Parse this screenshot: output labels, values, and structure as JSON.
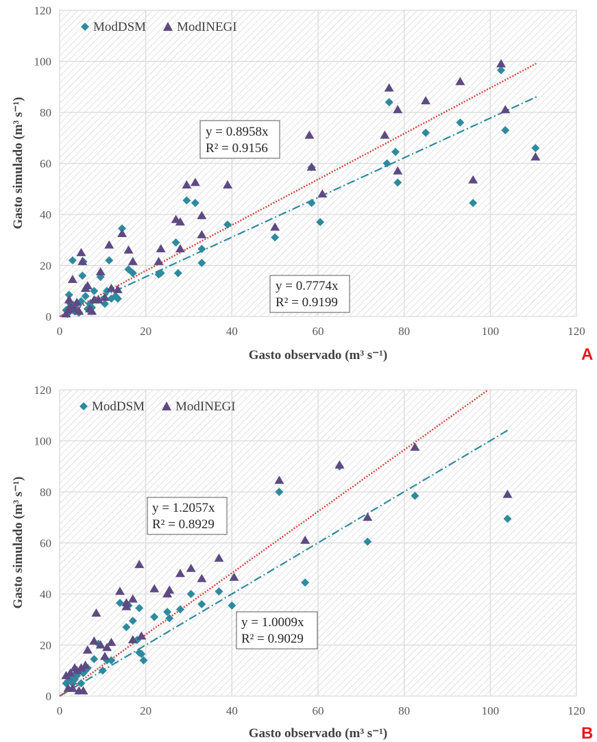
{
  "colors": {
    "moddsm": "#2e8a9e",
    "modinegi": "#5e4a82",
    "fit_moddsm": "#2e8a9e",
    "fit_modinegi": "#d0443a",
    "grid": "#d9d9d9",
    "hatch": "#c8c8c8",
    "panel_label": "#e8161b"
  },
  "chart_data": [
    {
      "type": "scatter",
      "panel_label": "A",
      "xlabel": "Gasto observado (m³ s⁻¹)",
      "ylabel": "Gasto simulado (m³ s⁻¹)",
      "xlim": [
        0,
        120
      ],
      "ylim": [
        0,
        120
      ],
      "xticks": [
        0,
        20,
        40,
        60,
        80,
        100,
        120
      ],
      "yticks": [
        0,
        20,
        40,
        60,
        80,
        100,
        120
      ],
      "grid": true,
      "legend": "top-left",
      "series": [
        {
          "name": "ModDSM",
          "marker": "diamond",
          "slope": 0.7774,
          "equation": "y = 0.7774x",
          "r2": "R² = 0.9199",
          "trend_xmax": 111,
          "points": [
            [
              1.5,
              2.5
            ],
            [
              1.8,
              1
            ],
            [
              2,
              3
            ],
            [
              2.2,
              8.5
            ],
            [
              2.5,
              5
            ],
            [
              2.8,
              3
            ],
            [
              3,
              22
            ],
            [
              3.2,
              4.5
            ],
            [
              3.5,
              2
            ],
            [
              4,
              5
            ],
            [
              4.5,
              1.5
            ],
            [
              5,
              6
            ],
            [
              5.3,
              16
            ],
            [
              5.5,
              21.5
            ],
            [
              6,
              8
            ],
            [
              6.5,
              3
            ],
            [
              7,
              5
            ],
            [
              7.5,
              3.5
            ],
            [
              8,
              10
            ],
            [
              9,
              6.5
            ],
            [
              9.5,
              15.5
            ],
            [
              10.5,
              5
            ],
            [
              11,
              10
            ],
            [
              11.5,
              22
            ],
            [
              12,
              7
            ],
            [
              13,
              8
            ],
            [
              13.5,
              7
            ],
            [
              14.5,
              34.5
            ],
            [
              16,
              18.5
            ],
            [
              17,
              17
            ],
            [
              23,
              16.5
            ],
            [
              23.5,
              17
            ],
            [
              27,
              29
            ],
            [
              27.5,
              17
            ],
            [
              29.5,
              45.5
            ],
            [
              31.5,
              44.5
            ],
            [
              33,
              26.5
            ],
            [
              33,
              21
            ],
            [
              39,
              36
            ],
            [
              50,
              31
            ],
            [
              58.5,
              58.5
            ],
            [
              58.5,
              44.5
            ],
            [
              60.5,
              37
            ],
            [
              76,
              60
            ],
            [
              76.5,
              84
            ],
            [
              78,
              64.5
            ],
            [
              78.5,
              52.5
            ],
            [
              85,
              72
            ],
            [
              93,
              76
            ],
            [
              96,
              44.5
            ],
            [
              102.5,
              96.5
            ],
            [
              103.5,
              73
            ],
            [
              110.5,
              66
            ]
          ]
        },
        {
          "name": "ModINEGI",
          "marker": "triangle",
          "slope": 0.8958,
          "equation": "y = 0.8958x",
          "r2": "R² = 0.9156",
          "trend_xmax": 111,
          "points": [
            [
              1.5,
              1
            ],
            [
              2,
              2.5
            ],
            [
              2.2,
              6.5
            ],
            [
              2.5,
              4
            ],
            [
              3,
              14.5
            ],
            [
              3.5,
              3
            ],
            [
              4,
              5.5
            ],
            [
              4.5,
              2
            ],
            [
              5,
              25
            ],
            [
              5.3,
              21.5
            ],
            [
              6,
              11
            ],
            [
              6.5,
              12
            ],
            [
              7,
              3
            ],
            [
              7.5,
              2
            ],
            [
              8,
              6.5
            ],
            [
              9,
              6.5
            ],
            [
              9.5,
              17.5
            ],
            [
              10.5,
              7.5
            ],
            [
              11.5,
              28
            ],
            [
              12,
              11
            ],
            [
              13.5,
              10.5
            ],
            [
              14.5,
              32.5
            ],
            [
              16,
              26
            ],
            [
              17,
              21.5
            ],
            [
              23,
              21.5
            ],
            [
              23.5,
              26.5
            ],
            [
              27,
              38
            ],
            [
              28,
              37
            ],
            [
              28,
              26.5
            ],
            [
              29.5,
              51.5
            ],
            [
              31.5,
              52.5
            ],
            [
              33,
              39.5
            ],
            [
              33,
              32
            ],
            [
              39,
              51.5
            ],
            [
              50,
              35
            ],
            [
              58,
              71
            ],
            [
              58.5,
              58.5
            ],
            [
              61,
              48
            ],
            [
              75.5,
              71
            ],
            [
              76.5,
              89.5
            ],
            [
              78.5,
              81
            ],
            [
              78.5,
              57
            ],
            [
              85,
              84.5
            ],
            [
              93,
              92
            ],
            [
              96,
              53.5
            ],
            [
              102.5,
              99
            ],
            [
              103.5,
              81
            ],
            [
              110.5,
              62.5
            ]
          ]
        }
      ]
    },
    {
      "type": "scatter",
      "panel_label": "B",
      "xlabel": "Gasto observado (m³ s⁻¹)",
      "ylabel": "Gasto simulado (m³ s⁻¹)",
      "xlim": [
        0,
        120
      ],
      "ylim": [
        0,
        120
      ],
      "xticks": [
        0,
        20,
        40,
        60,
        80,
        100,
        120
      ],
      "yticks": [
        0,
        20,
        40,
        60,
        80,
        100,
        120
      ],
      "grid": true,
      "legend": "top-left",
      "series": [
        {
          "name": "ModDSM",
          "marker": "diamond",
          "slope": 1.0009,
          "equation": "y = 1.0009x",
          "r2": "R² = 0.9029",
          "trend_xmax": 104,
          "points": [
            [
              1.5,
              5
            ],
            [
              2,
              6
            ],
            [
              2.5,
              7
            ],
            [
              3,
              5
            ],
            [
              3.5,
              6.5
            ],
            [
              4,
              8
            ],
            [
              4.5,
              9.5
            ],
            [
              5,
              5
            ],
            [
              5.5,
              9
            ],
            [
              6,
              10
            ],
            [
              6.5,
              11
            ],
            [
              8,
              14.5
            ],
            [
              9,
              20.5
            ],
            [
              10,
              10
            ],
            [
              11,
              14
            ],
            [
              12,
              14
            ],
            [
              14,
              36.5
            ],
            [
              15.5,
              27
            ],
            [
              16,
              35.5
            ],
            [
              17,
              29.5
            ],
            [
              18,
              22
            ],
            [
              18.5,
              34.5
            ],
            [
              18.5,
              17
            ],
            [
              19,
              16.5
            ],
            [
              19.5,
              14
            ],
            [
              22,
              31
            ],
            [
              25,
              33
            ],
            [
              25.5,
              30.5
            ],
            [
              28,
              34
            ],
            [
              30.5,
              40
            ],
            [
              33,
              36
            ],
            [
              37,
              41
            ],
            [
              40,
              35.5
            ],
            [
              51,
              80
            ],
            [
              57,
              44.5
            ],
            [
              65,
              90
            ],
            [
              71.5,
              60.5
            ],
            [
              82.5,
              78.5
            ],
            [
              104,
              69.5
            ]
          ]
        },
        {
          "name": "ModINEGI",
          "marker": "triangle",
          "slope": 1.2057,
          "equation": "y = 1.2057x",
          "r2": "R² = 0.8929",
          "trend_xmax": 104,
          "points": [
            [
              1.5,
              8
            ],
            [
              2,
              3
            ],
            [
              2.5,
              9
            ],
            [
              3,
              3
            ],
            [
              3.5,
              11
            ],
            [
              4,
              10
            ],
            [
              4.5,
              2
            ],
            [
              5,
              11
            ],
            [
              5.5,
              2
            ],
            [
              6,
              12
            ],
            [
              6.5,
              18
            ],
            [
              8,
              21.5
            ],
            [
              8.5,
              32.5
            ],
            [
              9.5,
              20
            ],
            [
              10.5,
              15.5
            ],
            [
              11,
              19
            ],
            [
              12,
              21
            ],
            [
              14,
              41
            ],
            [
              15.5,
              35
            ],
            [
              15.5,
              36.5
            ],
            [
              17,
              38
            ],
            [
              17,
              22
            ],
            [
              18.5,
              51.5
            ],
            [
              19,
              23.5
            ],
            [
              22,
              42
            ],
            [
              25,
              40
            ],
            [
              25.5,
              41.5
            ],
            [
              28,
              48
            ],
            [
              30.5,
              50
            ],
            [
              33,
              46
            ],
            [
              37,
              54
            ],
            [
              40.5,
              46.5
            ],
            [
              51,
              84.5
            ],
            [
              57,
              61
            ],
            [
              65,
              90.5
            ],
            [
              71.5,
              70
            ],
            [
              82.5,
              97.5
            ],
            [
              104,
              79
            ]
          ]
        }
      ]
    }
  ]
}
